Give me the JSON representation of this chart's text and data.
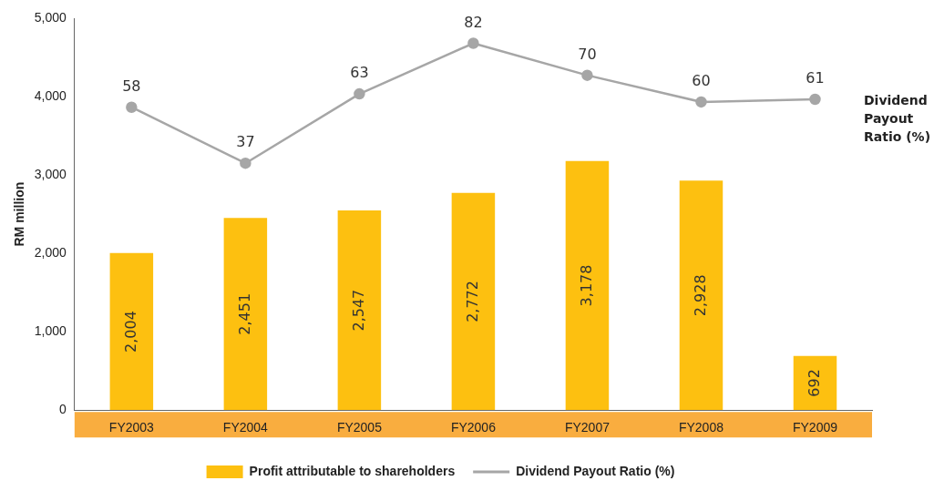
{
  "chart_data": {
    "type": "bar",
    "categories": [
      "FY2003",
      "FY2004",
      "FY2005",
      "FY2006",
      "FY2007",
      "FY2008",
      "FY2009"
    ],
    "ylabel": "RM million",
    "ylim": [
      0,
      5000
    ],
    "yticks": [
      {
        "value": 0,
        "label": "0"
      },
      {
        "value": 1000,
        "label": "1,000"
      },
      {
        "value": 2000,
        "label": "2,000"
      },
      {
        "value": 3000,
        "label": "3,000"
      },
      {
        "value": 4000,
        "label": "4,000"
      },
      {
        "value": 5000,
        "label": "5,000"
      }
    ],
    "y2lim": [
      -55.6,
      91.4
    ],
    "tick_labels": "y",
    "series": [
      {
        "name": "Profit attributable to shareholders",
        "type": "bar",
        "color": "#fdc010",
        "values": [
          2004,
          2451,
          2547,
          2772,
          3178,
          2928,
          692
        ],
        "value_labels": [
          "2,004",
          "2,451",
          "2,547",
          "2,772",
          "3,178",
          "2,928",
          "692"
        ]
      },
      {
        "name": "Dividend Payout Ratio (%)",
        "type": "line",
        "axis": "y2",
        "color": "#a6a6a6",
        "marker": "circle",
        "values": [
          58,
          37,
          63,
          82,
          70,
          60,
          61
        ]
      }
    ],
    "data_labels": true,
    "annotations": [
      "Dividend Payout Ratio (%)"
    ],
    "grid": false,
    "legend": "bottom"
  }
}
